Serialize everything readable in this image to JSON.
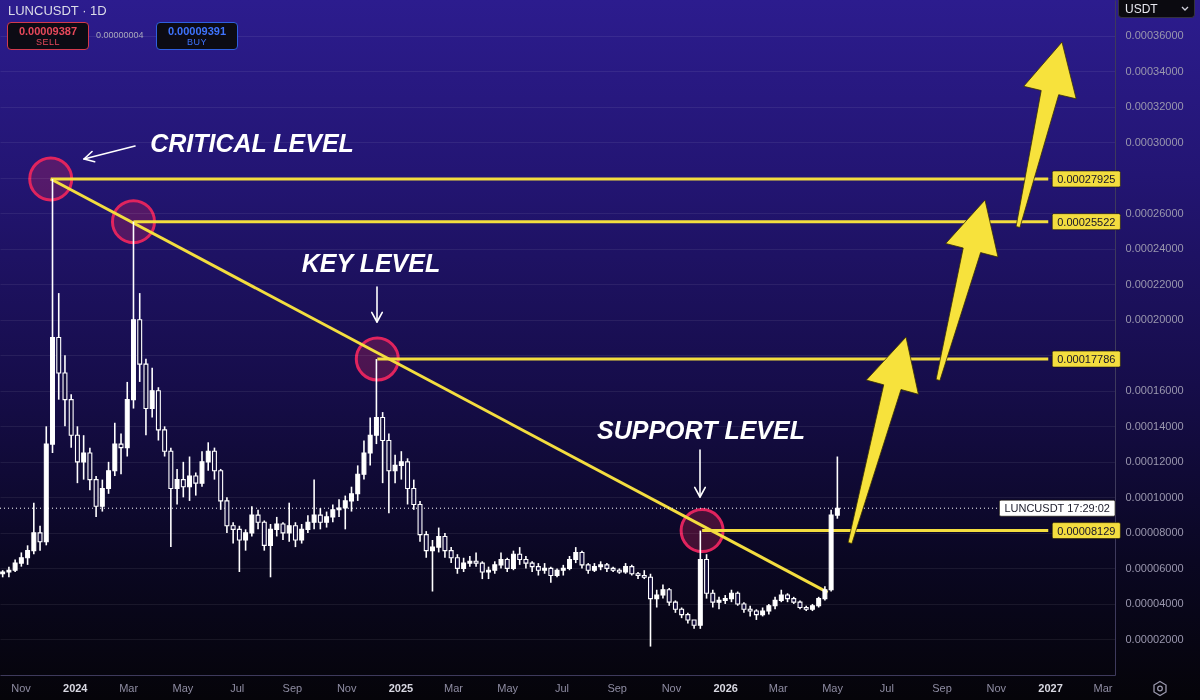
{
  "chart_data": {
    "type": "candlestick",
    "title": "LUNCUSDT · 1D",
    "ylabel": "USDT",
    "color": "#ffffff",
    "x": [
      "2023-10-12",
      "2023-10-19",
      "2023-10-26",
      "2023-11-02",
      "2023-11-09",
      "2023-11-16",
      "2023-11-23",
      "2023-11-30",
      "2023-12-07",
      "2023-12-14",
      "2023-12-21",
      "2023-12-28",
      "2024-01-04",
      "2024-01-11",
      "2024-01-18",
      "2024-01-25",
      "2024-02-01",
      "2024-02-08",
      "2024-02-15",
      "2024-02-22",
      "2024-02-29",
      "2024-03-07",
      "2024-03-14",
      "2024-03-21",
      "2024-03-28",
      "2024-04-04",
      "2024-04-11",
      "2024-04-18",
      "2024-04-25",
      "2024-05-02",
      "2024-05-09",
      "2024-05-16",
      "2024-05-23",
      "2024-05-30",
      "2024-06-06",
      "2024-06-13",
      "2024-06-20",
      "2024-06-27",
      "2024-07-04",
      "2024-07-11",
      "2024-07-18",
      "2024-07-25",
      "2024-08-01",
      "2024-08-08",
      "2024-08-15",
      "2024-08-22",
      "2024-08-29",
      "2024-09-05",
      "2024-09-12",
      "2024-09-19",
      "2024-09-26",
      "2024-10-03",
      "2024-10-10",
      "2024-10-17",
      "2024-10-24",
      "2024-10-31",
      "2024-11-07",
      "2024-11-14",
      "2024-11-21",
      "2024-11-28",
      "2024-12-05",
      "2024-12-12",
      "2024-12-19",
      "2024-12-26",
      "2025-01-02",
      "2025-01-09",
      "2025-01-16",
      "2025-01-23",
      "2025-01-30",
      "2025-02-06",
      "2025-02-13",
      "2025-02-20",
      "2025-02-27",
      "2025-03-06",
      "2025-03-13",
      "2025-03-20",
      "2025-03-27",
      "2025-04-03",
      "2025-04-10",
      "2025-04-17",
      "2025-04-24",
      "2025-05-01",
      "2025-05-08",
      "2025-05-15",
      "2025-05-22",
      "2025-05-29",
      "2025-06-05",
      "2025-06-12",
      "2025-06-19",
      "2025-06-26",
      "2025-07-03",
      "2025-07-10",
      "2025-07-17",
      "2025-07-24",
      "2025-07-31",
      "2025-08-07",
      "2025-08-14",
      "2025-08-21",
      "2025-08-28",
      "2025-09-04",
      "2025-09-11",
      "2025-09-18",
      "2025-09-25",
      "2025-10-02",
      "2025-10-09",
      "2025-10-16",
      "2025-10-23",
      "2025-10-30",
      "2025-11-06",
      "2025-11-13",
      "2025-11-20",
      "2025-11-27",
      "2025-12-04",
      "2025-12-11",
      "2025-12-18",
      "2025-12-25",
      "2026-01-01",
      "2026-01-08",
      "2026-01-15",
      "2026-01-22",
      "2026-01-29",
      "2026-02-05",
      "2026-02-12",
      "2026-02-19",
      "2026-02-26",
      "2026-03-05",
      "2026-03-12",
      "2026-03-19",
      "2026-03-26",
      "2026-04-02",
      "2026-04-09",
      "2026-04-16",
      "2026-04-23",
      "2026-04-30",
      "2026-05-07"
    ],
    "ohlc": [
      [
        5.7e-05,
        5.9e-05,
        5.5e-05,
        5.8e-05
      ],
      [
        5.8e-05,
        6.1e-05,
        5.5e-05,
        5.9e-05
      ],
      [
        5.9e-05,
        6.5e-05,
        5.8e-05,
        6.3e-05
      ],
      [
        6.3e-05,
        6.9e-05,
        6.1e-05,
        6.6e-05
      ],
      [
        6.6e-05,
        7.3e-05,
        6.2e-05,
        7e-05
      ],
      [
        7e-05,
        9.7e-05,
        6.8e-05,
        8e-05
      ],
      [
        8e-05,
        8.4e-05,
        7e-05,
        7.5e-05
      ],
      [
        7.5e-05,
        0.00014,
        7.3e-05,
        0.00013
      ],
      [
        0.00013,
        0.00027925,
        0.000125,
        0.00019
      ],
      [
        0.00019,
        0.000215,
        0.000155,
        0.00017
      ],
      [
        0.00017,
        0.00018,
        0.00014,
        0.000155
      ],
      [
        0.000155,
        0.000158,
        0.000128,
        0.000135
      ],
      [
        0.000135,
        0.00014,
        0.000108,
        0.00012
      ],
      [
        0.00012,
        0.000135,
        0.00011,
        0.000125
      ],
      [
        0.000125,
        0.000128,
        0.000104,
        0.00011
      ],
      [
        0.00011,
        0.000112,
        8.9e-05,
        9.5e-05
      ],
      [
        9.5e-05,
        0.00011,
        9.2e-05,
        0.000105
      ],
      [
        0.000105,
        0.00012,
        0.000102,
        0.000115
      ],
      [
        0.000115,
        0.000142,
        0.000112,
        0.00013
      ],
      [
        0.00013,
        0.000136,
        0.000113,
        0.000128
      ],
      [
        0.000128,
        0.000165,
        0.000123,
        0.000155
      ],
      [
        0.000155,
        0.00025522,
        0.00015,
        0.0002
      ],
      [
        0.0002,
        0.000215,
        0.000165,
        0.000175
      ],
      [
        0.000175,
        0.000178,
        0.000135,
        0.00015
      ],
      [
        0.00015,
        0.000173,
        0.000145,
        0.00016
      ],
      [
        0.00016,
        0.000162,
        0.000132,
        0.000138
      ],
      [
        0.000138,
        0.00014,
        0.000123,
        0.000126
      ],
      [
        0.000126,
        0.000128,
        7.2e-05,
        0.000105
      ],
      [
        0.000105,
        0.000116,
        9.6e-05,
        0.00011
      ],
      [
        0.00011,
        0.00012,
        0.0001,
        0.000106
      ],
      [
        0.000106,
        0.000123,
        9.8e-05,
        0.000112
      ],
      [
        0.000112,
        0.000114,
        0.000101,
        0.000108
      ],
      [
        0.000108,
        0.000126,
        0.000106,
        0.00012
      ],
      [
        0.00012,
        0.000131,
        0.000115,
        0.000126
      ],
      [
        0.000126,
        0.000128,
        0.00011,
        0.000115
      ],
      [
        0.000115,
        0.000116,
        9.3e-05,
        9.8e-05
      ],
      [
        9.8e-05,
        0.0001,
        8e-05,
        8.4e-05
      ],
      [
        8.4e-05,
        8.6e-05,
        7.4e-05,
        8.2e-05
      ],
      [
        8.2e-05,
        8.4e-05,
        5.8e-05,
        7.6e-05
      ],
      [
        7.6e-05,
        8.2e-05,
        7e-05,
        8e-05
      ],
      [
        8e-05,
        9.5e-05,
        7.8e-05,
        9e-05
      ],
      [
        9e-05,
        9.3e-05,
        8.2e-05,
        8.6e-05
      ],
      [
        8.6e-05,
        8.7e-05,
        7e-05,
        7.3e-05
      ],
      [
        7.3e-05,
        8.5e-05,
        5.5e-05,
        8.2e-05
      ],
      [
        8.2e-05,
        8.9e-05,
        7.8e-05,
        8.5e-05
      ],
      [
        8.5e-05,
        8.6e-05,
        7.6e-05,
        8e-05
      ],
      [
        8e-05,
        9.7e-05,
        7.5e-05,
        8.4e-05
      ],
      [
        8.4e-05,
        8.6e-05,
        7.2e-05,
        7.6e-05
      ],
      [
        7.6e-05,
        8.5e-05,
        7.4e-05,
        8.2e-05
      ],
      [
        8.2e-05,
        9e-05,
        8e-05,
        8.6e-05
      ],
      [
        8.6e-05,
        0.00011,
        8.2e-05,
        9e-05
      ],
      [
        9e-05,
        9.4e-05,
        8.2e-05,
        8.6e-05
      ],
      [
        8.6e-05,
        9.2e-05,
        8.3e-05,
        8.9e-05
      ],
      [
        8.9e-05,
        9.6e-05,
        8.6e-05,
        9.3e-05
      ],
      [
        9.3e-05,
        9.9e-05,
        8.9e-05,
        9.4e-05
      ],
      [
        9.4e-05,
        0.000101,
        8.2e-05,
        9.8e-05
      ],
      [
        9.8e-05,
        0.000106,
        9.2e-05,
        0.000102
      ],
      [
        0.000102,
        0.000118,
        9.8e-05,
        0.000113
      ],
      [
        0.000113,
        0.000132,
        0.00011,
        0.000125
      ],
      [
        0.000125,
        0.000145,
        0.000118,
        0.000135
      ],
      [
        0.000135,
        0.00017786,
        0.00013,
        0.000145
      ],
      [
        0.000145,
        0.000148,
        0.000108,
        0.000132
      ],
      [
        0.000132,
        0.000136,
        9.1e-05,
        0.000115
      ],
      [
        0.000115,
        0.000124,
        0.000108,
        0.000118
      ],
      [
        0.000118,
        0.000126,
        0.00011,
        0.00012
      ],
      [
        0.00012,
        0.000122,
        9.6e-05,
        0.000105
      ],
      [
        0.000105,
        0.00011,
        9.3e-05,
        9.6e-05
      ],
      [
        9.6e-05,
        9.8e-05,
        7.5e-05,
        7.9e-05
      ],
      [
        7.9e-05,
        8.1e-05,
        6.6e-05,
        7e-05
      ],
      [
        7e-05,
        7.6e-05,
        4.7e-05,
        7.2e-05
      ],
      [
        7.2e-05,
        8.3e-05,
        6.9e-05,
        7.8e-05
      ],
      [
        7.8e-05,
        8e-05,
        6.6e-05,
        7e-05
      ],
      [
        7e-05,
        7.2e-05,
        6.3e-05,
        6.6e-05
      ],
      [
        6.6e-05,
        6.8e-05,
        5.7e-05,
        6e-05
      ],
      [
        6e-05,
        6.6e-05,
        5.8e-05,
        6.3e-05
      ],
      [
        6.3e-05,
        6.7e-05,
        6.1e-05,
        6.4e-05
      ],
      [
        6.4e-05,
        6.9e-05,
        6.1e-05,
        6.3e-05
      ],
      [
        6.3e-05,
        6.4e-05,
        5.4e-05,
        5.8e-05
      ],
      [
        5.8e-05,
        6.1e-05,
        5.4e-05,
        5.9e-05
      ],
      [
        5.9e-05,
        6.4e-05,
        5.7e-05,
        6.2e-05
      ],
      [
        6.2e-05,
        6.9e-05,
        6e-05,
        6.5e-05
      ],
      [
        6.5e-05,
        6.6e-05,
        5.8e-05,
        6e-05
      ],
      [
        6e-05,
        7e-05,
        5.9e-05,
        6.8e-05
      ],
      [
        6.8e-05,
        7.2e-05,
        6.2e-05,
        6.5e-05
      ],
      [
        6.5e-05,
        6.7e-05,
        6e-05,
        6.3e-05
      ],
      [
        6.3e-05,
        6.4e-05,
        5.8e-05,
        6.1e-05
      ],
      [
        6.1e-05,
        6.3e-05,
        5.6e-05,
        5.9e-05
      ],
      [
        5.9e-05,
        6.3e-05,
        5.7e-05,
        6e-05
      ],
      [
        6e-05,
        6.1e-05,
        5.2e-05,
        5.6e-05
      ],
      [
        5.6e-05,
        6e-05,
        5.5e-05,
        5.9e-05
      ],
      [
        5.9e-05,
        6.2e-05,
        5.6e-05,
        6e-05
      ],
      [
        6e-05,
        6.7e-05,
        5.9e-05,
        6.5e-05
      ],
      [
        6.5e-05,
        7.2e-05,
        6.3e-05,
        6.9e-05
      ],
      [
        6.9e-05,
        7e-05,
        6e-05,
        6.2e-05
      ],
      [
        6.2e-05,
        6.3e-05,
        5.7e-05,
        5.9e-05
      ],
      [
        5.9e-05,
        6.3e-05,
        5.8e-05,
        6.1e-05
      ],
      [
        6.1e-05,
        6.4e-05,
        5.9e-05,
        6.2e-05
      ],
      [
        6.2e-05,
        6.3e-05,
        5.8e-05,
        6e-05
      ],
      [
        6e-05,
        6.1e-05,
        5.8e-05,
        5.9e-05
      ],
      [
        5.9e-05,
        6e-05,
        5.7e-05,
        5.8e-05
      ],
      [
        5.8e-05,
        6.3e-05,
        5.7e-05,
        6.1e-05
      ],
      [
        6.1e-05,
        6.2e-05,
        5.6e-05,
        5.7e-05
      ],
      [
        5.7e-05,
        5.8e-05,
        5.4e-05,
        5.6e-05
      ],
      [
        5.6e-05,
        5.9e-05,
        5.4e-05,
        5.5e-05
      ],
      [
        5.5e-05,
        5.7e-05,
        1.6e-05,
        4.3e-05
      ],
      [
        4.3e-05,
        4.8e-05,
        3.8e-05,
        4.5e-05
      ],
      [
        4.5e-05,
        5.1e-05,
        4.3e-05,
        4.8e-05
      ],
      [
        4.8e-05,
        4.9e-05,
        3.9e-05,
        4.1e-05
      ],
      [
        4.1e-05,
        4.2e-05,
        3.5e-05,
        3.7e-05
      ],
      [
        3.7e-05,
        3.8e-05,
        3.2e-05,
        3.4e-05
      ],
      [
        3.4e-05,
        3.5e-05,
        2.9e-05,
        3.1e-05
      ],
      [
        3.1e-05,
        3.1e-05,
        2.6e-05,
        2.8e-05
      ],
      [
        2.8e-05,
        8.129e-05,
        2.6e-05,
        6.5e-05
      ],
      [
        6.5e-05,
        6.8e-05,
        4.3e-05,
        4.6e-05
      ],
      [
        4.6e-05,
        4.8e-05,
        3.8e-05,
        4.1e-05
      ],
      [
        4.1e-05,
        4.4e-05,
        3.7e-05,
        4.2e-05
      ],
      [
        4.2e-05,
        4.5e-05,
        4e-05,
        4.3e-05
      ],
      [
        4.3e-05,
        4.8e-05,
        4.1e-05,
        4.6e-05
      ],
      [
        4.6e-05,
        4.7e-05,
        3.9e-05,
        4e-05
      ],
      [
        4e-05,
        4.1e-05,
        3.5e-05,
        3.7e-05
      ],
      [
        3.7e-05,
        3.9e-05,
        3.3e-05,
        3.6e-05
      ],
      [
        3.6e-05,
        3.7e-05,
        3.1e-05,
        3.4e-05
      ],
      [
        3.4e-05,
        3.8e-05,
        3.3e-05,
        3.6e-05
      ],
      [
        3.6e-05,
        4e-05,
        3.4e-05,
        3.9e-05
      ],
      [
        3.9e-05,
        4.4e-05,
        3.7e-05,
        4.2e-05
      ],
      [
        4.2e-05,
        4.8e-05,
        4.1e-05,
        4.5e-05
      ],
      [
        4.5e-05,
        4.6e-05,
        4.1e-05,
        4.3e-05
      ],
      [
        4.3e-05,
        4.4e-05,
        4e-05,
        4.1e-05
      ],
      [
        4.1e-05,
        4.2e-05,
        3.7e-05,
        3.8e-05
      ],
      [
        3.8e-05,
        3.9e-05,
        3.6e-05,
        3.7e-05
      ],
      [
        3.7e-05,
        4e-05,
        3.6e-05,
        3.9e-05
      ],
      [
        3.9e-05,
        4.4e-05,
        3.8e-05,
        4.3e-05
      ],
      [
        4.3e-05,
        5e-05,
        4.2e-05,
        4.8e-05
      ],
      [
        4.8e-05,
        9.3e-05,
        4.7e-05,
        9e-05
      ],
      [
        9e-05,
        0.000123,
        8.8e-05,
        9.39e-05
      ]
    ],
    "series": [
      {
        "type": "line",
        "color": "#f3dd3f",
        "x": [
          "2023-12-05",
          "2026-04-26"
        ],
        "values": [
          0.00027925,
          4.65e-05
        ]
      },
      {
        "type": "line",
        "color": "#f3dd3f",
        "x": [
          "2023-12-05",
          "2026-12-30"
        ],
        "values": [
          0.00027925,
          0.00027925
        ],
        "value_labels": [
          null,
          "0.00027925"
        ]
      },
      {
        "type": "line",
        "color": "#f3dd3f",
        "x": [
          "2024-03-07",
          "2026-12-30"
        ],
        "values": [
          0.00025522,
          0.00025522
        ],
        "value_labels": [
          null,
          "0.00025522"
        ]
      },
      {
        "type": "line",
        "color": "#f3dd3f",
        "x": [
          "2024-12-06",
          "2026-12-30"
        ],
        "values": [
          0.00017786,
          0.00017786
        ],
        "value_labels": [
          null,
          "0.00017786"
        ]
      },
      {
        "type": "line",
        "color": "#f3dd3f",
        "x": [
          "2025-12-06",
          "2026-12-30"
        ],
        "values": [
          8.129e-05,
          8.129e-05
        ],
        "value_labels": [
          null,
          "0.00008129"
        ]
      }
    ],
    "ref_lines": [
      {
        "axis": "y",
        "value": 9.39e-05,
        "color": "#ffffff",
        "line_style": "dotted"
      }
    ],
    "annotations": [
      "0.00009387",
      "SELL",
      "0.00000004",
      "0.00009391",
      "BUY",
      "CRITICAL LEVEL",
      "KEY LEVEL",
      "SUPPORT LEVEL",
      {
        "text": "LUNCUSDT 17:29:02",
        "y": 9.39e-05
      }
    ],
    "xlim": [
      "2023-10-09",
      "2027-03-15"
    ],
    "ylim": [
      0,
      0.00038
    ],
    "xticks": [
      {
        "value": "2023-11-01",
        "label": "Nov"
      },
      {
        "value": "2024-01-01",
        "label": "2024"
      },
      {
        "value": "2024-03-01",
        "label": "Mar"
      },
      {
        "value": "2024-05-01",
        "label": "May"
      },
      {
        "value": "2024-07-01",
        "label": "Jul"
      },
      {
        "value": "2024-09-01",
        "label": "Sep"
      },
      {
        "value": "2024-11-01",
        "label": "Nov"
      },
      {
        "value": "2025-01-01",
        "label": "2025"
      },
      {
        "value": "2025-03-01",
        "label": "Mar"
      },
      {
        "value": "2025-05-01",
        "label": "May"
      },
      {
        "value": "2025-07-01",
        "label": "Jul"
      },
      {
        "value": "2025-09-01",
        "label": "Sep"
      },
      {
        "value": "2025-11-01",
        "label": "Nov"
      },
      {
        "value": "2026-01-01",
        "label": "2026"
      },
      {
        "value": "2026-03-01",
        "label": "Mar"
      },
      {
        "value": "2026-05-01",
        "label": "May"
      },
      {
        "value": "2026-07-01",
        "label": "Jul"
      },
      {
        "value": "2026-09-01",
        "label": "Sep"
      },
      {
        "value": "2026-11-01",
        "label": "Nov"
      },
      {
        "value": "2027-01-01",
        "label": "2027"
      },
      {
        "value": "2027-03-01",
        "label": "Mar"
      }
    ],
    "yticks": [
      {
        "value": 2e-05,
        "label": "0.00002000"
      },
      {
        "value": 4e-05,
        "label": "0.00004000"
      },
      {
        "value": 6e-05,
        "label": "0.00006000"
      },
      {
        "value": 8e-05,
        "label": "0.00008000"
      },
      {
        "value": 0.0001,
        "label": "0.00010000"
      },
      {
        "value": 0.00012,
        "label": "0.00012000"
      },
      {
        "value": 0.00014,
        "label": "0.00014000"
      },
      {
        "value": 0.00016,
        "label": "0.00016000"
      },
      {
        "value": 0.00018,
        "label": null
      },
      {
        "value": 0.0002,
        "label": "0.00020000"
      },
      {
        "value": 0.00022,
        "label": "0.00022000"
      },
      {
        "value": 0.00024,
        "label": "0.00024000"
      },
      {
        "value": 0.00026,
        "label": "0.00026000"
      },
      {
        "value": 0.00028,
        "label": null
      },
      {
        "value": 0.0003,
        "label": "0.00030000"
      },
      {
        "value": 0.00032,
        "label": "0.00032000"
      },
      {
        "value": 0.00034,
        "label": "0.00034000"
      },
      {
        "value": 0.00036,
        "label": "0.00036000"
      }
    ],
    "grid": "y"
  }
}
